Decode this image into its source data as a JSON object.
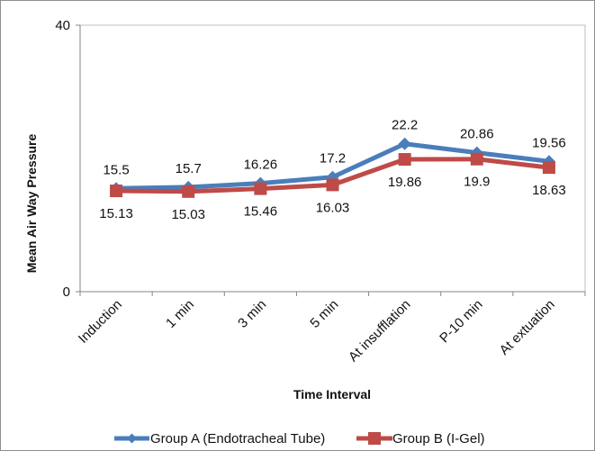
{
  "chart_data": {
    "type": "line",
    "title": "",
    "xlabel": "Time Interval",
    "ylabel": "Mean Air Way Pressure",
    "ylim": [
      0,
      40
    ],
    "yticks": [
      "0",
      "40"
    ],
    "grid": false,
    "legend_position": "bottom",
    "categories": [
      "Induction",
      "1 min",
      "3 min",
      "5 min",
      "At insufflation",
      "P-10 min",
      "At extuation"
    ],
    "series": [
      {
        "name": "Group A (Endotracheal Tube)",
        "color": "#4a7ebb",
        "marker": "diamond",
        "values": [
          15.5,
          15.7,
          16.26,
          17.2,
          22.2,
          20.86,
          19.56
        ],
        "labels": [
          "15.5",
          "15.7",
          "16.26",
          "17.2",
          "22.2",
          "20.86",
          "19.56"
        ]
      },
      {
        "name": "Group B (I-Gel)",
        "color": "#be4b48",
        "marker": "square",
        "values": [
          15.13,
          15.03,
          15.46,
          16.03,
          19.86,
          19.9,
          18.63
        ],
        "labels": [
          "15.13",
          "15.03",
          "15.46",
          "16.03",
          "19.86",
          "19.9",
          "18.63"
        ]
      }
    ]
  }
}
